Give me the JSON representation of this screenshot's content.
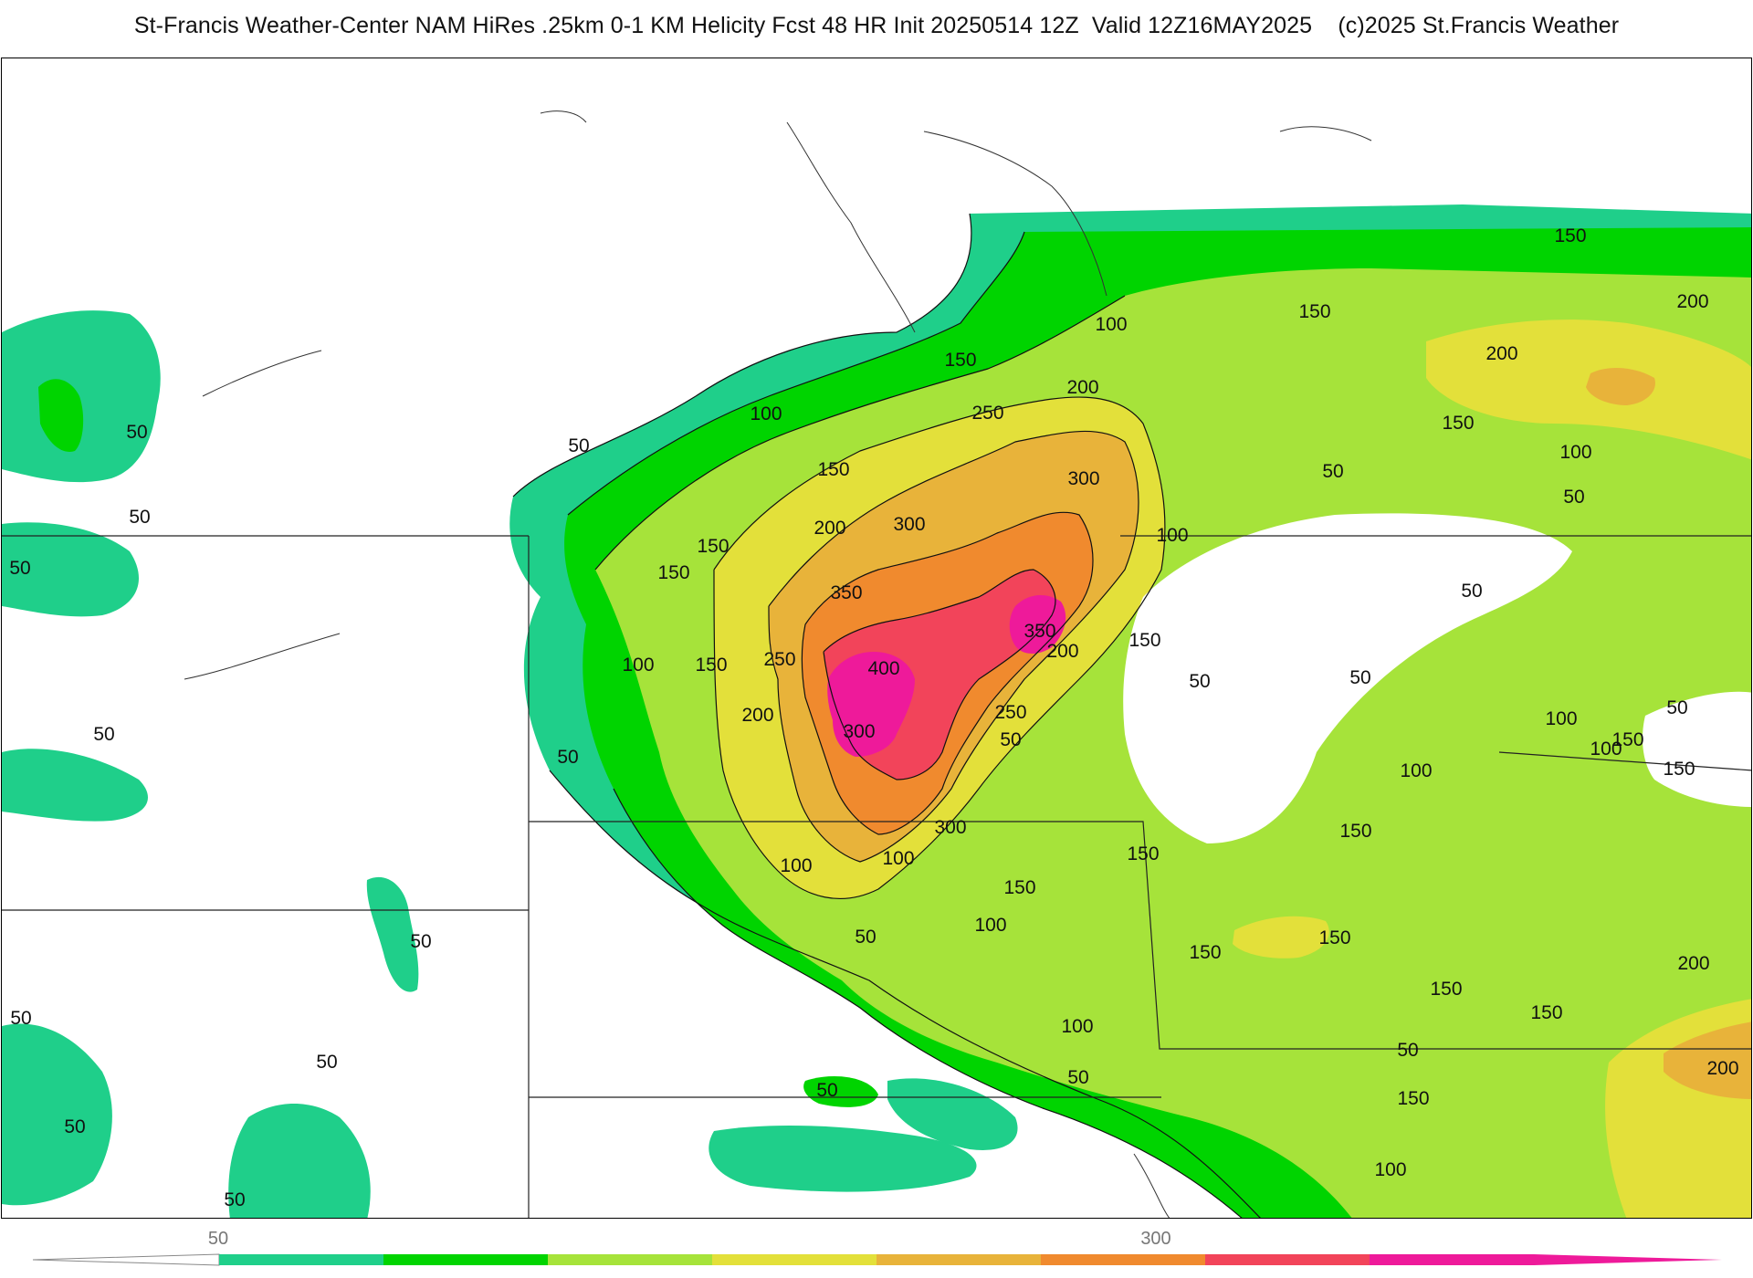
{
  "header": {
    "title": "St-Francis Weather-Center NAM HiRes .25km 0-1 KM Helicity Fcst 48 HR Init 20250514 12Z  Valid 12Z16MAY2025    (c)2025 St.Francis Weather"
  },
  "map": {
    "contour_labels": [
      {
        "text": "50"
      },
      {
        "text": "50"
      },
      {
        "text": "50"
      },
      {
        "text": "50"
      },
      {
        "text": "50"
      },
      {
        "text": "50"
      },
      {
        "text": "50"
      },
      {
        "text": "50"
      },
      {
        "text": "50"
      },
      {
        "text": "50"
      },
      {
        "text": "50"
      },
      {
        "text": "50"
      },
      {
        "text": "50"
      },
      {
        "text": "50"
      },
      {
        "text": "50"
      },
      {
        "text": "50"
      },
      {
        "text": "50"
      },
      {
        "text": "50"
      },
      {
        "text": "50"
      },
      {
        "text": "50"
      },
      {
        "text": "50"
      },
      {
        "text": "50"
      },
      {
        "text": "100"
      },
      {
        "text": "100"
      },
      {
        "text": "100"
      },
      {
        "text": "100"
      },
      {
        "text": "100"
      },
      {
        "text": "100"
      },
      {
        "text": "100"
      },
      {
        "text": "100"
      },
      {
        "text": "100"
      },
      {
        "text": "100"
      },
      {
        "text": "100"
      },
      {
        "text": "100"
      },
      {
        "text": "100"
      },
      {
        "text": "150"
      },
      {
        "text": "150"
      },
      {
        "text": "150"
      },
      {
        "text": "150"
      },
      {
        "text": "150"
      },
      {
        "text": "150"
      },
      {
        "text": "150"
      },
      {
        "text": "150"
      },
      {
        "text": "150"
      },
      {
        "text": "150"
      },
      {
        "text": "150"
      },
      {
        "text": "150"
      },
      {
        "text": "150"
      },
      {
        "text": "150"
      },
      {
        "text": "150"
      },
      {
        "text": "150"
      },
      {
        "text": "150"
      },
      {
        "text": "150"
      },
      {
        "text": "150"
      },
      {
        "text": "200"
      },
      {
        "text": "200"
      },
      {
        "text": "200"
      },
      {
        "text": "200"
      },
      {
        "text": "200"
      },
      {
        "text": "200"
      },
      {
        "text": "200"
      },
      {
        "text": "200"
      },
      {
        "text": "250"
      },
      {
        "text": "250"
      },
      {
        "text": "250"
      },
      {
        "text": "300"
      },
      {
        "text": "300"
      },
      {
        "text": "300"
      },
      {
        "text": "300"
      },
      {
        "text": "350"
      },
      {
        "text": "350"
      },
      {
        "text": "400"
      }
    ]
  },
  "colorbar": {
    "tick_labels": [
      "50",
      "300"
    ],
    "colors": [
      "#1fcf8a",
      "#00d400",
      "#a6e33a",
      "#e3e03a",
      "#e8b33a",
      "#f08a2e",
      "#f2445a",
      "#ee1a9a"
    ]
  }
}
